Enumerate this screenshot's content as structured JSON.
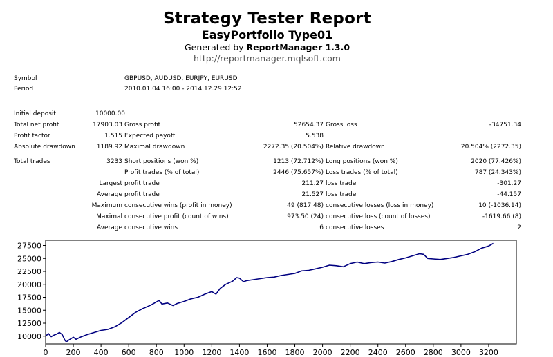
{
  "header": {
    "title": "Strategy Tester Report",
    "subtitle": "EasyPortfolio Type01",
    "generated_prefix": "Generated by ",
    "generated_tool": "ReportManager 1.3.0",
    "url": "http://reportmanager.mqlsoft.com"
  },
  "info": {
    "symbol_label": "Symbol",
    "symbol_value": "GBPUSD, AUDUSD, EURJPY, EURUSD",
    "period_label": "Period",
    "period_value": "2010.01.04 16:00 - 2014.12.29 12:52"
  },
  "stats": {
    "initial_deposit": {
      "label": "Initial deposit",
      "value": "10000.00"
    },
    "total_net_profit": {
      "label": "Total net profit",
      "value": "17903.03"
    },
    "gross_profit": {
      "label": "Gross profit",
      "value": "52654.37"
    },
    "gross_loss": {
      "label": "Gross loss",
      "value": "-34751.34"
    },
    "profit_factor": {
      "label": "Profit factor",
      "value": "1.515"
    },
    "expected_payoff": {
      "label": "Expected payoff",
      "value": "5.538"
    },
    "absolute_drawdown": {
      "label": "Absolute drawdown",
      "value": "1189.92"
    },
    "maximal_drawdown": {
      "label": "Maximal drawdown",
      "value": "2272.35 (20.504%)"
    },
    "relative_drawdown": {
      "label": "Relative drawdown",
      "value": "20.504% (2272.35)"
    },
    "total_trades": {
      "label": "Total trades",
      "value": "3233"
    },
    "short_positions": {
      "label": "Short positions (won %)",
      "value": "1213 (72.712%)"
    },
    "long_positions": {
      "label": "Long positions (won %)",
      "value": "2020 (77.426%)"
    },
    "profit_trades": {
      "label": "Profit trades (% of total)",
      "value": "2446 (75.657%)"
    },
    "loss_trades": {
      "label": "Loss trades (% of total)",
      "value": "787 (24.343%)"
    },
    "largest_label": "Largest",
    "largest_profit": {
      "label": "profit trade",
      "value": "211.27"
    },
    "largest_loss": {
      "label": "loss trade",
      "value": "-301.27"
    },
    "average_label": "Average",
    "average_profit": {
      "label": "profit trade",
      "value": "21.527"
    },
    "average_loss": {
      "label": "loss trade",
      "value": "-44.157"
    },
    "maximum_label": "Maximum",
    "max_consec_wins": {
      "label": "consecutive wins (profit in money)",
      "value": "49 (817.48)"
    },
    "max_consec_losses": {
      "label": "consecutive losses (loss in money)",
      "value": "10 (-1036.14)"
    },
    "maximal_label": "Maximal",
    "maximal_consec_profit": {
      "label": "consecutive profit (count of wins)",
      "value": "973.50 (24)"
    },
    "maximal_consec_loss": {
      "label": "consecutive loss (count of losses)",
      "value": "-1619.66 (8)"
    },
    "avg_consec_label": "Average",
    "avg_consec_wins": {
      "label": "consecutive wins",
      "value": "6"
    },
    "avg_consec_losses": {
      "label": "consecutive losses",
      "value": "2"
    }
  },
  "chart_data": {
    "type": "line",
    "title": "",
    "xlabel": "",
    "ylabel": "",
    "xlim": [
      0,
      3400
    ],
    "ylim": [
      8500,
      28500
    ],
    "x_ticks": [
      0,
      200,
      400,
      600,
      800,
      1000,
      1200,
      1400,
      1600,
      1800,
      2000,
      2200,
      2400,
      2600,
      2800,
      3000,
      3200
    ],
    "y_ticks": [
      10000,
      12500,
      15000,
      17500,
      20000,
      22500,
      25000,
      27500
    ],
    "grid": false,
    "line_color": "#000080",
    "series": [
      {
        "values": [
          [
            0,
            10000
          ],
          [
            20,
            10500
          ],
          [
            40,
            9900
          ],
          [
            60,
            10200
          ],
          [
            80,
            10400
          ],
          [
            100,
            10700
          ],
          [
            120,
            10300
          ],
          [
            140,
            9200
          ],
          [
            150,
            8900
          ],
          [
            170,
            9300
          ],
          [
            200,
            9800
          ],
          [
            220,
            9400
          ],
          [
            250,
            9800
          ],
          [
            300,
            10300
          ],
          [
            350,
            10700
          ],
          [
            400,
            11100
          ],
          [
            450,
            11300
          ],
          [
            500,
            11800
          ],
          [
            550,
            12600
          ],
          [
            600,
            13600
          ],
          [
            650,
            14600
          ],
          [
            700,
            15300
          ],
          [
            760,
            16000
          ],
          [
            800,
            16600
          ],
          [
            820,
            16900
          ],
          [
            840,
            16200
          ],
          [
            880,
            16400
          ],
          [
            920,
            15900
          ],
          [
            950,
            16300
          ],
          [
            1000,
            16700
          ],
          [
            1050,
            17200
          ],
          [
            1100,
            17500
          ],
          [
            1150,
            18100
          ],
          [
            1200,
            18600
          ],
          [
            1230,
            18100
          ],
          [
            1260,
            19200
          ],
          [
            1300,
            20000
          ],
          [
            1350,
            20600
          ],
          [
            1380,
            21300
          ],
          [
            1400,
            21200
          ],
          [
            1430,
            20500
          ],
          [
            1450,
            20700
          ],
          [
            1500,
            20900
          ],
          [
            1550,
            21100
          ],
          [
            1600,
            21300
          ],
          [
            1650,
            21400
          ],
          [
            1700,
            21700
          ],
          [
            1750,
            21900
          ],
          [
            1800,
            22100
          ],
          [
            1850,
            22600
          ],
          [
            1900,
            22700
          ],
          [
            1950,
            23000
          ],
          [
            2000,
            23300
          ],
          [
            2050,
            23700
          ],
          [
            2100,
            23600
          ],
          [
            2150,
            23400
          ],
          [
            2200,
            24000
          ],
          [
            2250,
            24300
          ],
          [
            2300,
            24000
          ],
          [
            2350,
            24200
          ],
          [
            2400,
            24300
          ],
          [
            2450,
            24100
          ],
          [
            2500,
            24400
          ],
          [
            2550,
            24800
          ],
          [
            2600,
            25100
          ],
          [
            2650,
            25500
          ],
          [
            2700,
            25900
          ],
          [
            2730,
            25800
          ],
          [
            2760,
            25000
          ],
          [
            2800,
            24900
          ],
          [
            2850,
            24800
          ],
          [
            2900,
            25000
          ],
          [
            2950,
            25200
          ],
          [
            3000,
            25500
          ],
          [
            3050,
            25800
          ],
          [
            3100,
            26300
          ],
          [
            3150,
            27000
          ],
          [
            3200,
            27400
          ],
          [
            3233,
            27900
          ]
        ]
      }
    ]
  }
}
